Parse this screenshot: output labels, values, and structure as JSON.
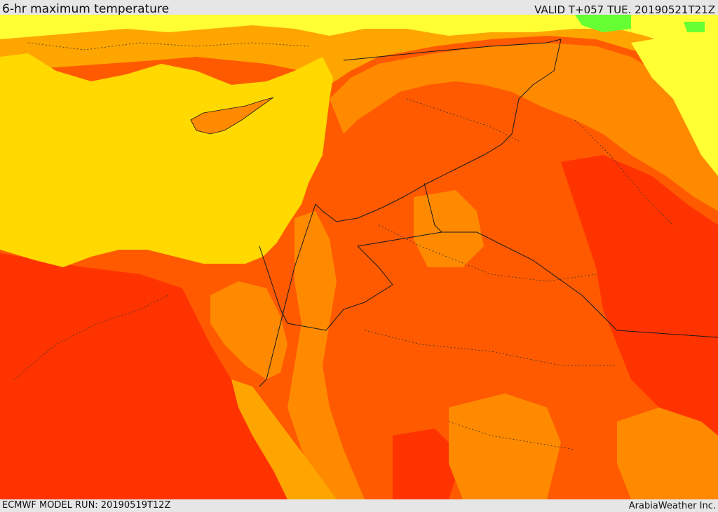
{
  "header": {
    "title": "6-hr maximum temperature",
    "valid": "VALID T+057 TUE. 20190521T21Z"
  },
  "footer": {
    "model_run": "ECMWF MODEL RUN: 20190519T12Z",
    "credit": "ArabiaWeather Inc."
  },
  "map": {
    "colors": {
      "sea": "#ffd900",
      "very_warm": "#ffa500",
      "hot": "#ff8a00",
      "hotter": "#ff5a00",
      "hottest": "#ff3300",
      "cool": "#ffff33",
      "coolest": "#66ff33",
      "border": "#1a1a1a"
    }
  }
}
